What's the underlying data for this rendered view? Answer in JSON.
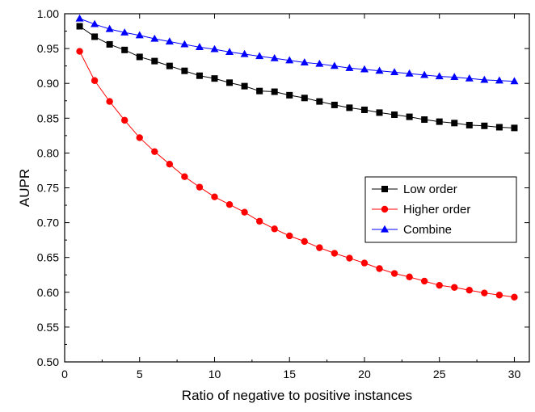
{
  "chart_data": {
    "type": "line",
    "xlabel": "Ratio of negative to positive instances",
    "ylabel": "AUPR",
    "xlim": [
      0,
      31
    ],
    "ylim": [
      0.5,
      1.0
    ],
    "xticks": [
      0,
      5,
      10,
      15,
      20,
      25,
      30
    ],
    "yticks": [
      0.5,
      0.55,
      0.6,
      0.65,
      0.7,
      0.75,
      0.8,
      0.85,
      0.9,
      0.95,
      1.0
    ],
    "xtick_labels": [
      "0",
      "5",
      "10",
      "15",
      "20",
      "25",
      "30"
    ],
    "ytick_labels": [
      "0.50",
      "0.55",
      "0.60",
      "0.65",
      "0.70",
      "0.75",
      "0.80",
      "0.85",
      "0.90",
      "0.95",
      "1.00"
    ],
    "legend_position": "center-right",
    "x": [
      1,
      2,
      3,
      4,
      5,
      6,
      7,
      8,
      9,
      10,
      11,
      12,
      13,
      14,
      15,
      16,
      17,
      18,
      19,
      20,
      21,
      22,
      23,
      24,
      25,
      26,
      27,
      28,
      29,
      30
    ],
    "series": [
      {
        "name": "Low order",
        "color": "#000000",
        "marker": "square",
        "values": [
          0.982,
          0.967,
          0.956,
          0.948,
          0.938,
          0.932,
          0.925,
          0.918,
          0.911,
          0.907,
          0.901,
          0.896,
          0.889,
          0.888,
          0.883,
          0.879,
          0.874,
          0.869,
          0.865,
          0.862,
          0.858,
          0.855,
          0.852,
          0.848,
          0.845,
          0.843,
          0.84,
          0.839,
          0.837,
          0.836
        ]
      },
      {
        "name": "Higher order",
        "color": "#ff0000",
        "marker": "circle",
        "values": [
          0.946,
          0.904,
          0.874,
          0.847,
          0.822,
          0.802,
          0.784,
          0.766,
          0.751,
          0.737,
          0.726,
          0.715,
          0.702,
          0.691,
          0.681,
          0.673,
          0.664,
          0.656,
          0.649,
          0.642,
          0.634,
          0.627,
          0.622,
          0.616,
          0.61,
          0.607,
          0.603,
          0.599,
          0.596,
          0.593
        ]
      },
      {
        "name": "Combine",
        "color": "#0000ff",
        "marker": "triangle",
        "values": [
          0.993,
          0.985,
          0.978,
          0.973,
          0.969,
          0.964,
          0.96,
          0.956,
          0.952,
          0.949,
          0.945,
          0.942,
          0.939,
          0.936,
          0.933,
          0.93,
          0.928,
          0.925,
          0.922,
          0.92,
          0.918,
          0.916,
          0.914,
          0.912,
          0.91,
          0.909,
          0.907,
          0.905,
          0.904,
          0.903
        ]
      }
    ]
  }
}
